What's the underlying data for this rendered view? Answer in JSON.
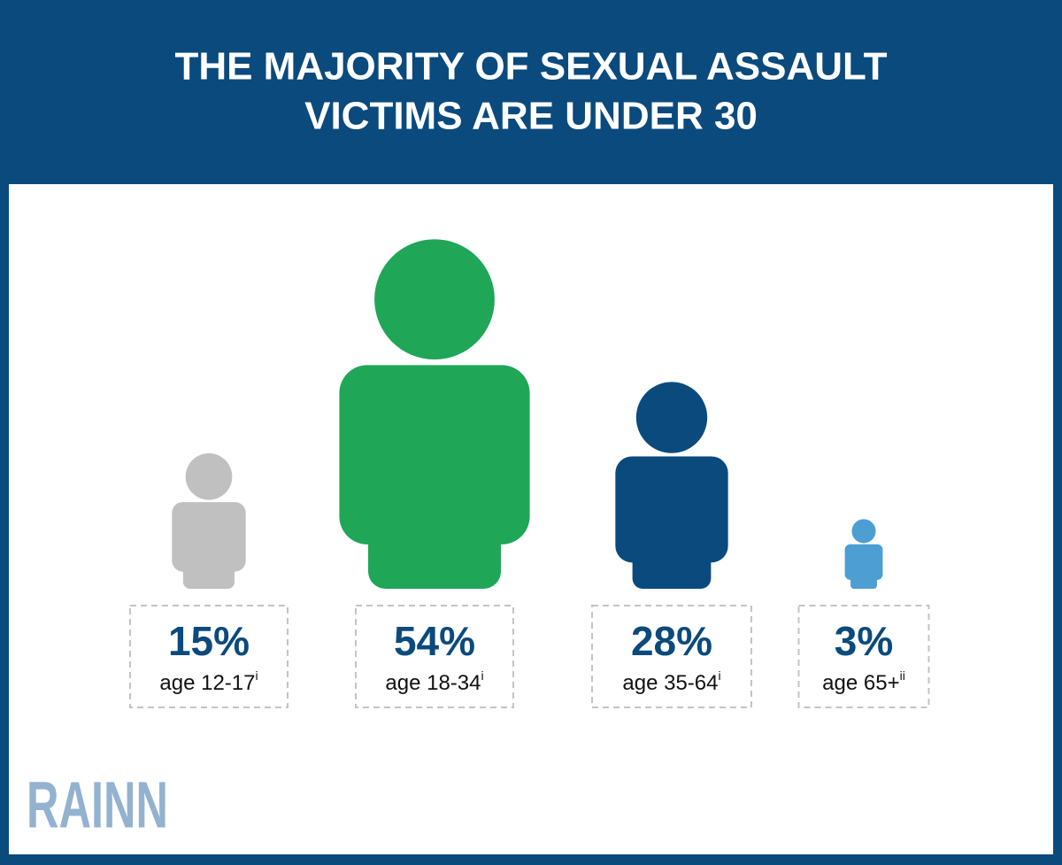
{
  "chart_data": {
    "type": "pictogram",
    "title_lines": [
      "THE MAJORITY OF SEXUAL ASSAULT",
      "VICTIMS ARE UNDER 30"
    ],
    "categories": [
      "age 12-17",
      "age 18-34",
      "age 35-64",
      "age 65+"
    ],
    "footnote_marks": [
      "i",
      "i",
      "i",
      "ii"
    ],
    "values": [
      15,
      54,
      28,
      3
    ],
    "value_labels": [
      "15%",
      "54%",
      "28%",
      "3%"
    ],
    "colors": [
      "#c1c0c1",
      "#1fa657",
      "#0b4a7d",
      "#4c9ed3"
    ]
  },
  "logo": "RAINN"
}
